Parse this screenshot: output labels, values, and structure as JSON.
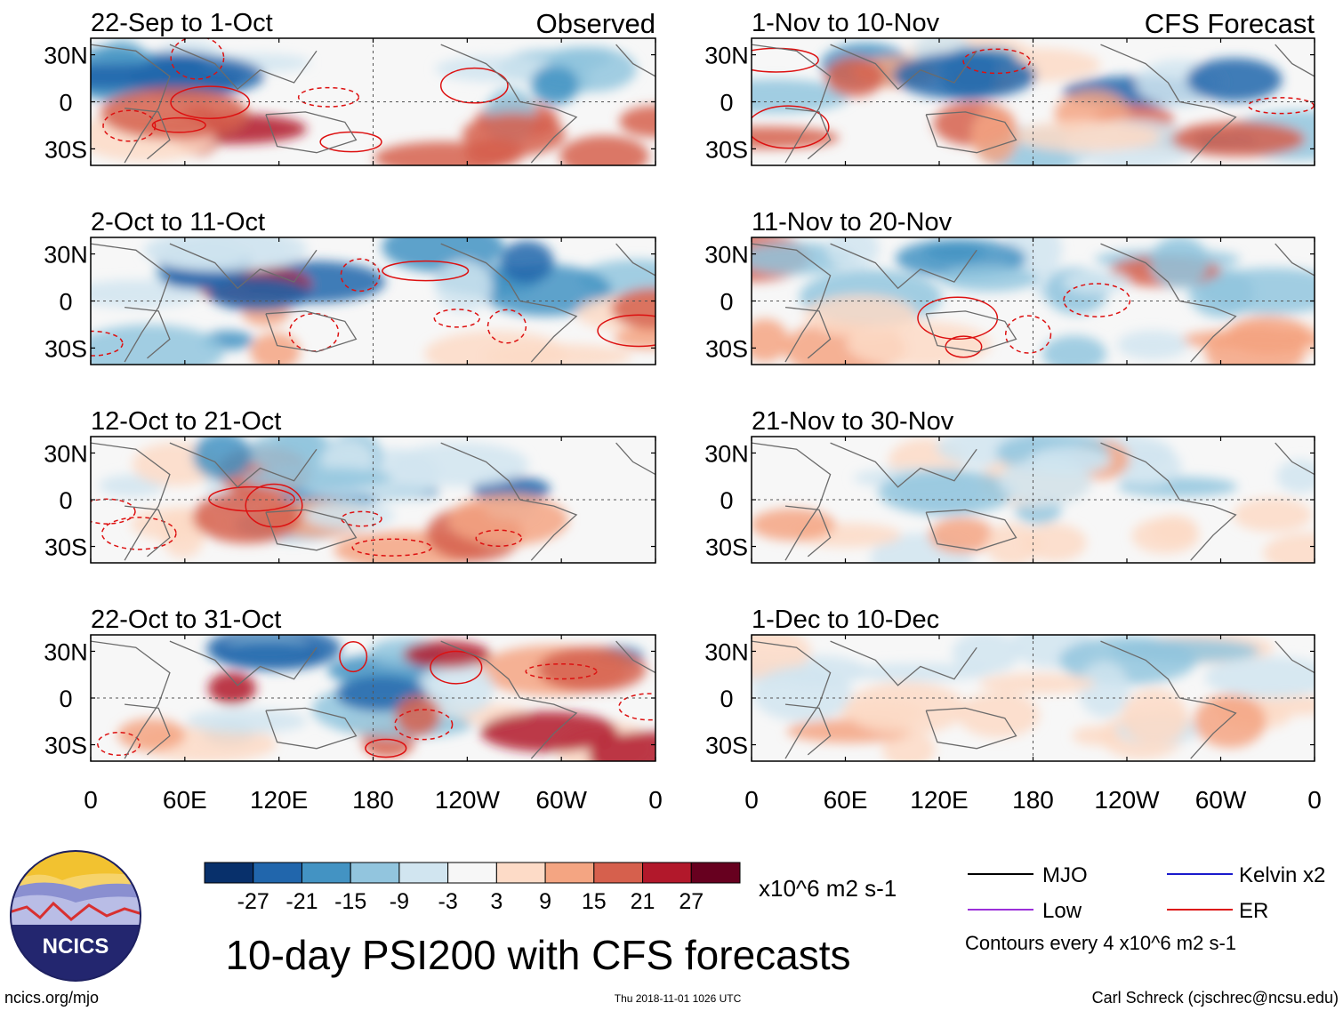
{
  "chart_data": {
    "type": "heatmap",
    "title": "10-day PSI200 with CFS forecasts",
    "units": "x10^6 m2 s-1",
    "contour_note": "Contours every 4 x10^6 m2 s-1",
    "colorbar": {
      "ticks": [
        "-27",
        "-21",
        "-15",
        "-9",
        "-3",
        "3",
        "9",
        "15",
        "21",
        "27"
      ],
      "colors": [
        "#08306b",
        "#2166ac",
        "#4393c3",
        "#92c5de",
        "#d1e5f0",
        "#f7f7f7",
        "#fddbc7",
        "#f4a582",
        "#d6604d",
        "#b2182b",
        "#67001f"
      ]
    },
    "x_ticks": [
      "0",
      "60E",
      "120E",
      "180",
      "120W",
      "60W",
      "0"
    ],
    "y_ticks": [
      "30N",
      "0",
      "30S"
    ],
    "column_labels": {
      "left": "Observed",
      "right": "CFS Forecast"
    },
    "panels_observed": [
      {
        "period": "22-Sep to 1-Oct"
      },
      {
        "period": "2-Oct to 11-Oct"
      },
      {
        "period": "12-Oct to 21-Oct"
      },
      {
        "period": "22-Oct to 31-Oct"
      }
    ],
    "panels_forecast": [
      {
        "period": "1-Nov to 10-Nov"
      },
      {
        "period": "11-Nov to 20-Nov"
      },
      {
        "period": "21-Nov to 30-Nov"
      },
      {
        "period": "1-Dec to 10-Dec"
      }
    ],
    "legend": [
      {
        "label": "MJO",
        "color": "#000000"
      },
      {
        "label": "Kelvin x2",
        "color": "#1a1acc"
      },
      {
        "label": "Low",
        "color": "#9b30d9"
      },
      {
        "label": "ER",
        "color": "#dd1111"
      }
    ]
  },
  "footer": {
    "site": "ncics.org/mjo",
    "timestamp": "Thu 2018-11-01 1026 UTC",
    "author": "Carl Schreck (cjschrec@ncsu.edu)",
    "logo_text": "NCICS"
  }
}
